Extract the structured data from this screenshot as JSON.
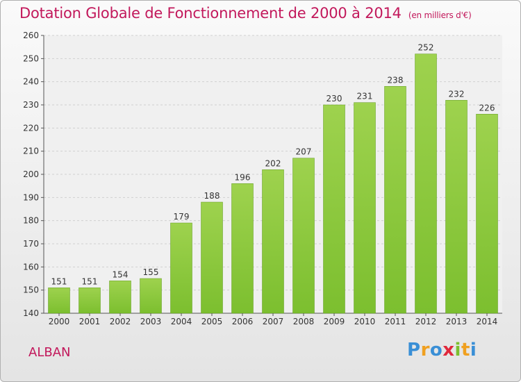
{
  "chart_data": {
    "type": "bar",
    "title": "Dotation Globale de Fonctionnement de 2000 à 2014",
    "subtitle": "(en milliers d'€)",
    "categories": [
      "2000",
      "2001",
      "2002",
      "2003",
      "2004",
      "2005",
      "2006",
      "2007",
      "2008",
      "2009",
      "2010",
      "2011",
      "2012",
      "2013",
      "2014"
    ],
    "values": [
      151,
      151,
      154,
      155,
      179,
      188,
      196,
      202,
      207,
      230,
      231,
      238,
      252,
      232,
      226
    ],
    "ylim": [
      140,
      260
    ],
    "yticks": [
      140,
      150,
      160,
      170,
      180,
      190,
      200,
      210,
      220,
      230,
      240,
      250,
      260
    ],
    "grid": true,
    "bar_color": "#7cbf2f"
  },
  "commune": "ALBAN",
  "logo": {
    "letters": [
      {
        "ch": "P",
        "color": "#3a8fd6"
      },
      {
        "ch": "r",
        "color": "#f0a020"
      },
      {
        "ch": "o",
        "color": "#3a8fd6"
      },
      {
        "ch": "x",
        "color": "#e0283c"
      },
      {
        "ch": "i",
        "color": "#7cbf2f"
      },
      {
        "ch": "t",
        "color": "#f0a020"
      },
      {
        "ch": "i",
        "color": "#3a8fd6"
      }
    ]
  }
}
